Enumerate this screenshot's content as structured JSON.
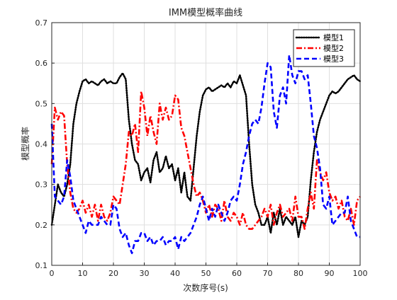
{
  "chart_data": {
    "type": "line",
    "title": "IMM模型概率曲线",
    "xlabel": "次数序号(s)",
    "ylabel": "模型概率",
    "xlim": [
      0,
      100
    ],
    "ylim": [
      0.1,
      0.7
    ],
    "x_ticks": [
      "0",
      "10",
      "20",
      "30",
      "40",
      "50",
      "60",
      "70",
      "80",
      "90",
      "100"
    ],
    "y_ticks": [
      "0.1",
      "0.2",
      "0.3",
      "0.4",
      "0.5",
      "0.6",
      "0.7"
    ],
    "grid": true,
    "legend_position": "top-right",
    "x": [
      0,
      1,
      2,
      3,
      4,
      5,
      6,
      7,
      8,
      9,
      10,
      11,
      12,
      13,
      14,
      15,
      16,
      17,
      18,
      19,
      20,
      21,
      22,
      23,
      24,
      25,
      26,
      27,
      28,
      29,
      30,
      31,
      32,
      33,
      34,
      35,
      36,
      37,
      38,
      39,
      40,
      41,
      42,
      43,
      44,
      45,
      46,
      47,
      48,
      49,
      50,
      51,
      52,
      53,
      54,
      55,
      56,
      57,
      58,
      59,
      60,
      61,
      62,
      63,
      64,
      65,
      66,
      67,
      68,
      69,
      70,
      71,
      72,
      73,
      74,
      75,
      76,
      77,
      78,
      79,
      80,
      81,
      82,
      83,
      84,
      85,
      86,
      87,
      88,
      89,
      90,
      91,
      92,
      93,
      94,
      95,
      96,
      97,
      98,
      99,
      100
    ],
    "series": [
      {
        "name": "模型1",
        "color": "#000000",
        "dash": "dotted",
        "values": [
          0.2,
          0.25,
          0.3,
          0.28,
          0.27,
          0.3,
          0.35,
          0.45,
          0.5,
          0.53,
          0.555,
          0.56,
          0.55,
          0.555,
          0.55,
          0.545,
          0.555,
          0.56,
          0.55,
          0.555,
          0.55,
          0.55,
          0.565,
          0.575,
          0.56,
          0.46,
          0.4,
          0.36,
          0.35,
          0.31,
          0.33,
          0.34,
          0.305,
          0.36,
          0.38,
          0.33,
          0.34,
          0.37,
          0.34,
          0.35,
          0.31,
          0.34,
          0.28,
          0.33,
          0.27,
          0.26,
          0.34,
          0.42,
          0.48,
          0.52,
          0.535,
          0.54,
          0.53,
          0.535,
          0.54,
          0.545,
          0.54,
          0.55,
          0.54,
          0.555,
          0.55,
          0.57,
          0.545,
          0.52,
          0.4,
          0.3,
          0.25,
          0.23,
          0.2,
          0.2,
          0.22,
          0.18,
          0.23,
          0.2,
          0.24,
          0.2,
          0.22,
          0.21,
          0.2,
          0.22,
          0.17,
          0.21,
          0.2,
          0.22,
          0.31,
          0.38,
          0.43,
          0.46,
          0.48,
          0.5,
          0.52,
          0.53,
          0.525,
          0.53,
          0.54,
          0.55,
          0.56,
          0.565,
          0.57,
          0.56,
          0.555
        ]
      },
      {
        "name": "模型2",
        "color": "#ff0000",
        "dash": "dashdot",
        "values": [
          0.35,
          0.49,
          0.46,
          0.48,
          0.47,
          0.35,
          0.28,
          0.24,
          0.23,
          0.24,
          0.26,
          0.23,
          0.25,
          0.22,
          0.25,
          0.21,
          0.25,
          0.22,
          0.21,
          0.23,
          0.27,
          0.26,
          0.25,
          0.3,
          0.35,
          0.43,
          0.42,
          0.45,
          0.38,
          0.53,
          0.49,
          0.42,
          0.47,
          0.43,
          0.4,
          0.5,
          0.46,
          0.49,
          0.46,
          0.47,
          0.52,
          0.51,
          0.44,
          0.42,
          0.38,
          0.34,
          0.3,
          0.27,
          0.28,
          0.26,
          0.23,
          0.25,
          0.22,
          0.25,
          0.24,
          0.21,
          0.26,
          0.22,
          0.21,
          0.23,
          0.22,
          0.2,
          0.23,
          0.2,
          0.19,
          0.19,
          0.2,
          0.21,
          0.22,
          0.24,
          0.22,
          0.25,
          0.2,
          0.23,
          0.25,
          0.22,
          0.23,
          0.24,
          0.21,
          0.27,
          0.22,
          0.22,
          0.19,
          0.24,
          0.28,
          0.24,
          0.36,
          0.33,
          0.31,
          0.33,
          0.28,
          0.26,
          0.27,
          0.24,
          0.26,
          0.22,
          0.21,
          0.24,
          0.2,
          0.26,
          0.27
        ]
      },
      {
        "name": "模型3",
        "color": "#0000ff",
        "dash": "dashed",
        "values": [
          0.45,
          0.27,
          0.26,
          0.25,
          0.27,
          0.36,
          0.32,
          0.26,
          0.24,
          0.22,
          0.2,
          0.18,
          0.21,
          0.2,
          0.2,
          0.2,
          0.22,
          0.21,
          0.2,
          0.2,
          0.25,
          0.24,
          0.19,
          0.17,
          0.18,
          0.15,
          0.13,
          0.16,
          0.16,
          0.18,
          0.18,
          0.16,
          0.17,
          0.15,
          0.16,
          0.16,
          0.17,
          0.15,
          0.16,
          0.16,
          0.17,
          0.14,
          0.17,
          0.16,
          0.17,
          0.18,
          0.2,
          0.22,
          0.25,
          0.27,
          0.24,
          0.21,
          0.24,
          0.22,
          0.25,
          0.23,
          0.21,
          0.23,
          0.26,
          0.27,
          0.26,
          0.3,
          0.35,
          0.38,
          0.42,
          0.45,
          0.46,
          0.45,
          0.49,
          0.55,
          0.6,
          0.59,
          0.48,
          0.44,
          0.52,
          0.54,
          0.5,
          0.62,
          0.57,
          0.55,
          0.58,
          0.58,
          0.56,
          0.57,
          0.5,
          0.42,
          0.39,
          0.34,
          0.25,
          0.24,
          0.27,
          0.2,
          0.21,
          0.22,
          0.23,
          0.23,
          0.27,
          0.21,
          0.19,
          0.17,
          0.17
        ]
      }
    ]
  }
}
